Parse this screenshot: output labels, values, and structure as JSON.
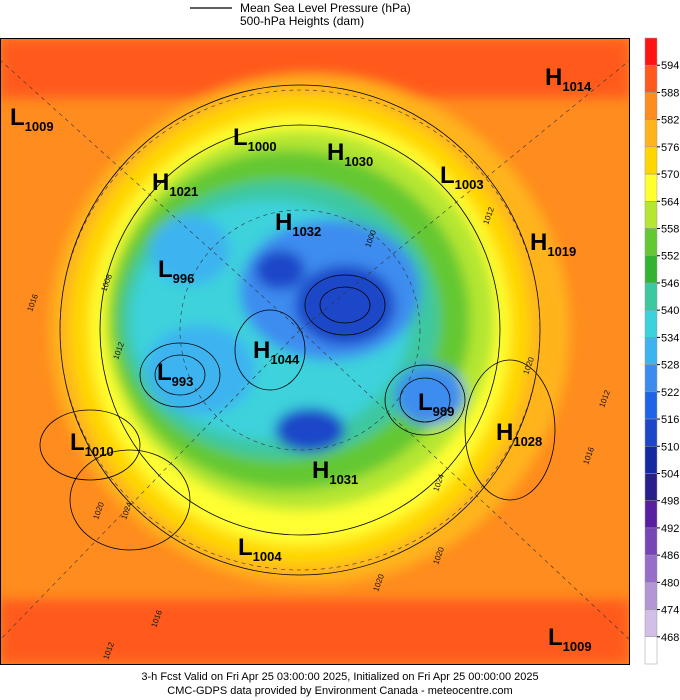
{
  "legend": {
    "line1": "Mean Sea Level Pressure (hPa)",
    "line2": "500-hPa Heights (dam)"
  },
  "colorbar": {
    "levels": [
      594,
      588,
      582,
      576,
      570,
      564,
      558,
      552,
      546,
      540,
      534,
      528,
      522,
      516,
      510,
      504,
      498,
      492,
      486,
      480,
      474,
      468
    ],
    "colors": [
      "#ff1414",
      "#ff5a1e",
      "#ff8c1e",
      "#ffb41e",
      "#ffd700",
      "#ffff32",
      "#b4e632",
      "#64c832",
      "#32b432",
      "#3cc8a0",
      "#3cd2dc",
      "#3cb4f0",
      "#3c8cf0",
      "#1e64e6",
      "#1e46c8",
      "#1428a0",
      "#281e8c",
      "#5a1ea0",
      "#7846b4",
      "#966ec8",
      "#b496d7",
      "#d2bee6",
      "#ffffff"
    ]
  },
  "centers": [
    {
      "kind": "L",
      "value": 1009
    },
    {
      "kind": "L",
      "value": 1000
    },
    {
      "kind": "H",
      "value": 1030
    },
    {
      "kind": "H",
      "value": 1021
    },
    {
      "kind": "L",
      "value": 1003
    },
    {
      "kind": "H",
      "value": 1014
    },
    {
      "kind": "H",
      "value": 1032
    },
    {
      "kind": "H",
      "value": 1019
    },
    {
      "kind": "L",
      "value": 996
    },
    {
      "kind": "H",
      "value": 1044
    },
    {
      "kind": "L",
      "value": 993
    },
    {
      "kind": "L",
      "value": 989
    },
    {
      "kind": "H",
      "value": 1028
    },
    {
      "kind": "L",
      "value": 1010
    },
    {
      "kind": "H",
      "value": 1031
    },
    {
      "kind": "L",
      "value": 1004
    },
    {
      "kind": "L",
      "value": 1009
    }
  ],
  "contour_labels": [
    1016,
    1008,
    1012,
    1020,
    1024,
    1016,
    1012,
    1020,
    1020,
    1016,
    1012,
    1024,
    1020,
    1000,
    1012
  ],
  "footer": {
    "line1": "3-h Fcst Valid on Fri Apr 25 03:00:00 2025, Initialized on Fri Apr 25 00:00:00 2025",
    "line2": "CMC-GDPS data provided by Environment Canada - meteocentre.com"
  }
}
